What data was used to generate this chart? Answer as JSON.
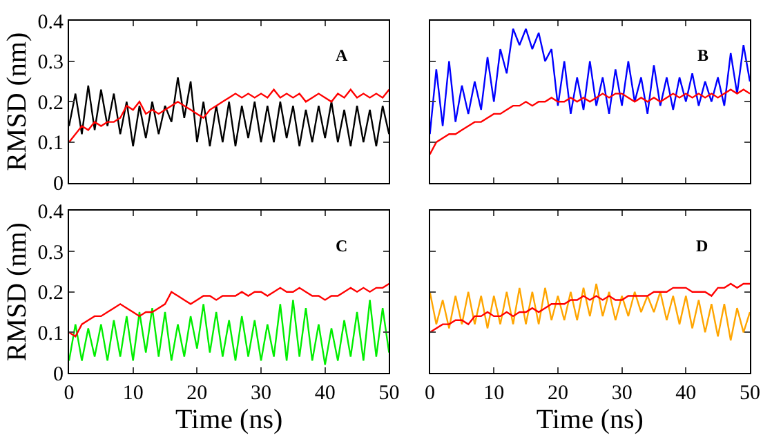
{
  "chart_data": [
    {
      "type": "line",
      "annotations": [
        "A"
      ],
      "ylabel": "RMSD (nm)",
      "xlim": [
        0,
        50
      ],
      "ylim": [
        0,
        0.4
      ],
      "xticks": [
        {
          "value": 0,
          "label": null
        },
        {
          "value": 10,
          "label": null
        },
        {
          "value": 20,
          "label": null
        },
        {
          "value": 30,
          "label": null
        },
        {
          "value": 40,
          "label": null
        },
        {
          "value": 50,
          "label": null
        }
      ],
      "yticks": [
        0,
        0.1,
        0.2,
        0.3,
        0.4
      ],
      "tick_labels": "y",
      "x": [
        0,
        1,
        2,
        3,
        4,
        5,
        6,
        7,
        8,
        9,
        10,
        11,
        12,
        13,
        14,
        15,
        16,
        17,
        18,
        19,
        20,
        21,
        22,
        23,
        24,
        25,
        26,
        27,
        28,
        29,
        30,
        31,
        32,
        33,
        34,
        35,
        36,
        37,
        38,
        39,
        40,
        41,
        42,
        43,
        44,
        45,
        46,
        47,
        48,
        49,
        50
      ],
      "series": [
        {
          "color": "#000000",
          "values": [
            0.14,
            0.22,
            0.12,
            0.24,
            0.13,
            0.23,
            0.14,
            0.22,
            0.12,
            0.2,
            0.09,
            0.19,
            0.11,
            0.2,
            0.12,
            0.19,
            0.15,
            0.26,
            0.16,
            0.25,
            0.1,
            0.2,
            0.09,
            0.19,
            0.1,
            0.2,
            0.09,
            0.19,
            0.11,
            0.2,
            0.1,
            0.19,
            0.1,
            0.2,
            0.11,
            0.19,
            0.09,
            0.18,
            0.1,
            0.19,
            0.11,
            0.2,
            0.1,
            0.18,
            0.09,
            0.19,
            0.1,
            0.18,
            0.09,
            0.19,
            0.12
          ]
        },
        {
          "color": "#ff0000",
          "values": [
            0.1,
            0.12,
            0.14,
            0.13,
            0.15,
            0.14,
            0.15,
            0.15,
            0.16,
            0.19,
            0.18,
            0.2,
            0.17,
            0.18,
            0.17,
            0.18,
            0.19,
            0.2,
            0.19,
            0.18,
            0.17,
            0.16,
            0.18,
            0.19,
            0.2,
            0.21,
            0.22,
            0.21,
            0.22,
            0.21,
            0.22,
            0.21,
            0.23,
            0.21,
            0.22,
            0.21,
            0.22,
            0.2,
            0.21,
            0.22,
            0.21,
            0.2,
            0.22,
            0.21,
            0.23,
            0.21,
            0.22,
            0.21,
            0.22,
            0.21,
            0.23
          ]
        }
      ]
    },
    {
      "type": "line",
      "annotations": [
        "B"
      ],
      "xlim": [
        0,
        50
      ],
      "ylim": [
        0,
        0.4
      ],
      "xticks": [
        {
          "value": 0,
          "label": null
        },
        {
          "value": 10,
          "label": null
        },
        {
          "value": 20,
          "label": null
        },
        {
          "value": 30,
          "label": null
        },
        {
          "value": 40,
          "label": null
        },
        {
          "value": 50,
          "label": null
        }
      ],
      "yticks": [
        {
          "value": 0,
          "label": null
        },
        {
          "value": 0.1,
          "label": null
        },
        {
          "value": 0.2,
          "label": null
        },
        {
          "value": 0.3,
          "label": null
        },
        {
          "value": 0.4,
          "label": null
        }
      ],
      "tick_labels": false,
      "x": [
        0,
        1,
        2,
        3,
        4,
        5,
        6,
        7,
        8,
        9,
        10,
        11,
        12,
        13,
        14,
        15,
        16,
        17,
        18,
        19,
        20,
        21,
        22,
        23,
        24,
        25,
        26,
        27,
        28,
        29,
        30,
        31,
        32,
        33,
        34,
        35,
        36,
        37,
        38,
        39,
        40,
        41,
        42,
        43,
        44,
        45,
        46,
        47,
        48,
        49,
        50
      ],
      "series": [
        {
          "color": "#0000ff",
          "values": [
            0.12,
            0.28,
            0.14,
            0.3,
            0.15,
            0.24,
            0.17,
            0.25,
            0.18,
            0.31,
            0.2,
            0.33,
            0.27,
            0.38,
            0.34,
            0.38,
            0.33,
            0.37,
            0.3,
            0.33,
            0.19,
            0.3,
            0.17,
            0.26,
            0.18,
            0.3,
            0.19,
            0.26,
            0.17,
            0.28,
            0.19,
            0.3,
            0.2,
            0.26,
            0.17,
            0.29,
            0.19,
            0.26,
            0.18,
            0.26,
            0.2,
            0.27,
            0.19,
            0.25,
            0.2,
            0.26,
            0.19,
            0.32,
            0.22,
            0.34,
            0.25
          ]
        },
        {
          "color": "#ff0000",
          "values": [
            0.07,
            0.1,
            0.11,
            0.12,
            0.12,
            0.13,
            0.14,
            0.15,
            0.15,
            0.16,
            0.17,
            0.17,
            0.18,
            0.19,
            0.19,
            0.2,
            0.19,
            0.2,
            0.2,
            0.21,
            0.2,
            0.2,
            0.21,
            0.2,
            0.21,
            0.2,
            0.21,
            0.22,
            0.21,
            0.22,
            0.22,
            0.21,
            0.2,
            0.21,
            0.2,
            0.21,
            0.2,
            0.21,
            0.22,
            0.21,
            0.22,
            0.21,
            0.22,
            0.21,
            0.22,
            0.21,
            0.22,
            0.23,
            0.22,
            0.23,
            0.22
          ]
        }
      ]
    },
    {
      "type": "line",
      "annotations": [
        "C"
      ],
      "ylabel": "RMSD (nm)",
      "xlabel": "Time (ns)",
      "xlim": [
        0,
        50
      ],
      "ylim": [
        0,
        0.4
      ],
      "xticks": [
        0,
        10,
        20,
        30,
        40,
        50
      ],
      "yticks": [
        0,
        0.1,
        0.2,
        0.3,
        0.4
      ],
      "x": [
        0,
        1,
        2,
        3,
        4,
        5,
        6,
        7,
        8,
        9,
        10,
        11,
        12,
        13,
        14,
        15,
        16,
        17,
        18,
        19,
        20,
        21,
        22,
        23,
        24,
        25,
        26,
        27,
        28,
        29,
        30,
        31,
        32,
        33,
        34,
        35,
        36,
        37,
        38,
        39,
        40,
        41,
        42,
        43,
        44,
        45,
        46,
        47,
        48,
        49,
        50
      ],
      "series": [
        {
          "color": "#00ee00",
          "values": [
            0.03,
            0.12,
            0.03,
            0.11,
            0.04,
            0.12,
            0.03,
            0.13,
            0.04,
            0.14,
            0.03,
            0.15,
            0.05,
            0.16,
            0.04,
            0.15,
            0.03,
            0.12,
            0.04,
            0.14,
            0.06,
            0.17,
            0.05,
            0.15,
            0.04,
            0.13,
            0.03,
            0.14,
            0.04,
            0.13,
            0.03,
            0.12,
            0.04,
            0.17,
            0.03,
            0.18,
            0.04,
            0.16,
            0.03,
            0.12,
            0.02,
            0.11,
            0.03,
            0.13,
            0.04,
            0.15,
            0.03,
            0.18,
            0.04,
            0.16,
            0.05
          ]
        },
        {
          "color": "#ff0000",
          "values": [
            0.1,
            0.09,
            0.12,
            0.13,
            0.14,
            0.14,
            0.15,
            0.16,
            0.17,
            0.16,
            0.15,
            0.14,
            0.15,
            0.15,
            0.16,
            0.17,
            0.2,
            0.19,
            0.18,
            0.17,
            0.18,
            0.19,
            0.19,
            0.18,
            0.19,
            0.19,
            0.19,
            0.2,
            0.19,
            0.2,
            0.2,
            0.19,
            0.2,
            0.21,
            0.2,
            0.2,
            0.21,
            0.2,
            0.19,
            0.19,
            0.18,
            0.19,
            0.19,
            0.2,
            0.21,
            0.2,
            0.21,
            0.2,
            0.21,
            0.21,
            0.22
          ]
        }
      ]
    },
    {
      "type": "line",
      "annotations": [
        "D"
      ],
      "xlabel": "Time (ns)",
      "xlim": [
        0,
        50
      ],
      "ylim": [
        0,
        0.4
      ],
      "xticks": [
        0,
        10,
        20,
        30,
        40,
        50
      ],
      "yticks": [
        {
          "value": 0,
          "label": null
        },
        {
          "value": 0.1,
          "label": null
        },
        {
          "value": 0.2,
          "label": null
        },
        {
          "value": 0.3,
          "label": null
        },
        {
          "value": 0.4,
          "label": null
        }
      ],
      "tick_labels": "x",
      "x": [
        0,
        1,
        2,
        3,
        4,
        5,
        6,
        7,
        8,
        9,
        10,
        11,
        12,
        13,
        14,
        15,
        16,
        17,
        18,
        19,
        20,
        21,
        22,
        23,
        24,
        25,
        26,
        27,
        28,
        29,
        30,
        31,
        32,
        33,
        34,
        35,
        36,
        37,
        38,
        39,
        40,
        41,
        42,
        43,
        44,
        45,
        46,
        47,
        48,
        49,
        50
      ],
      "series": [
        {
          "color": "#ffa500",
          "values": [
            0.2,
            0.12,
            0.18,
            0.11,
            0.19,
            0.12,
            0.2,
            0.12,
            0.19,
            0.11,
            0.19,
            0.12,
            0.2,
            0.12,
            0.21,
            0.12,
            0.2,
            0.12,
            0.21,
            0.13,
            0.19,
            0.13,
            0.2,
            0.13,
            0.21,
            0.14,
            0.22,
            0.14,
            0.2,
            0.13,
            0.19,
            0.14,
            0.2,
            0.15,
            0.19,
            0.15,
            0.2,
            0.13,
            0.19,
            0.12,
            0.19,
            0.11,
            0.18,
            0.1,
            0.17,
            0.09,
            0.17,
            0.08,
            0.16,
            0.1,
            0.15
          ]
        },
        {
          "color": "#ff0000",
          "values": [
            0.1,
            0.11,
            0.12,
            0.12,
            0.13,
            0.13,
            0.12,
            0.14,
            0.14,
            0.15,
            0.14,
            0.14,
            0.15,
            0.14,
            0.15,
            0.15,
            0.16,
            0.15,
            0.16,
            0.17,
            0.17,
            0.17,
            0.18,
            0.18,
            0.19,
            0.18,
            0.19,
            0.18,
            0.19,
            0.18,
            0.18,
            0.19,
            0.19,
            0.19,
            0.19,
            0.2,
            0.2,
            0.2,
            0.21,
            0.21,
            0.21,
            0.2,
            0.2,
            0.2,
            0.19,
            0.21,
            0.21,
            0.22,
            0.21,
            0.22,
            0.22
          ]
        }
      ]
    }
  ]
}
